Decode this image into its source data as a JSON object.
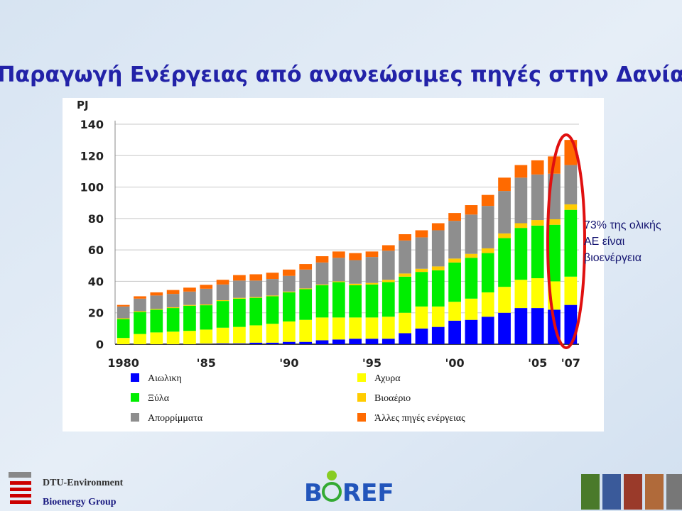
{
  "header": {
    "title": "Παραγωγή Ενέργειας από ανανεώσιμες πηγές στην Δανία"
  },
  "chart_data": {
    "type": "bar",
    "stacked": true,
    "y_label": "PJ",
    "categories": [
      "1980",
      null,
      null,
      null,
      null,
      "'85",
      null,
      null,
      null,
      null,
      "'90",
      null,
      null,
      null,
      null,
      "'95",
      null,
      null,
      null,
      null,
      "'00",
      null,
      null,
      null,
      null,
      "'05",
      null,
      "'07"
    ],
    "ylim": [
      0,
      140
    ],
    "yticks": [
      0,
      20,
      40,
      60,
      80,
      100,
      120,
      140
    ],
    "grid": true,
    "series": [
      {
        "name": "Αιωλικη",
        "color": "#0000ff",
        "values": [
          0,
          0,
          0,
          0,
          0,
          0.3,
          0.5,
          0.5,
          1,
          1,
          1.5,
          1.5,
          2.5,
          3,
          3.5,
          3.5,
          3.5,
          7,
          10,
          11,
          15,
          15.5,
          17.5,
          20,
          23,
          23,
          22,
          25
        ]
      },
      {
        "name": "Αχυρα",
        "color": "#ffff00",
        "values": [
          4,
          6.5,
          7.5,
          8,
          8.5,
          9,
          10,
          10.5,
          11,
          12,
          13,
          14,
          14.5,
          14,
          13.5,
          13.5,
          14,
          13,
          14,
          13,
          12,
          13.5,
          15.5,
          16.5,
          18,
          19,
          18,
          18
        ]
      },
      {
        "name": "Ξύλα",
        "color": "#00ee00",
        "values": [
          12,
          14,
          14.5,
          15,
          16,
          15.5,
          17,
          18,
          17.5,
          17.5,
          18.5,
          19.5,
          20.5,
          22.5,
          20.5,
          21,
          22,
          23,
          22,
          23,
          25,
          26,
          25,
          31,
          33,
          33.5,
          36,
          42.5
        ]
      },
      {
        "name": "Βιοαέριο",
        "color": "#ffcc00",
        "values": [
          0.5,
          0.5,
          0.5,
          0.5,
          0.5,
          0.5,
          0.5,
          0.5,
          0.5,
          0.5,
          0.5,
          0.5,
          0.5,
          0.5,
          1,
          1,
          1.5,
          2,
          2,
          2.5,
          2.5,
          2.5,
          3,
          3,
          3,
          3.5,
          3.5,
          3.5
        ]
      },
      {
        "name": "Απορρίμματα",
        "color": "#8e8e8e",
        "values": [
          7.5,
          8,
          8.5,
          8.5,
          8.5,
          10,
          10,
          11,
          10.5,
          10.5,
          10,
          12,
          14,
          15,
          15,
          16.5,
          18.5,
          21,
          20,
          23,
          24,
          25,
          27,
          27,
          29,
          29,
          29,
          25
        ]
      },
      {
        "name": "Άλλες πηγές ενέργειας",
        "color": "#ff6a00",
        "values": [
          1,
          1.5,
          2,
          2.5,
          2.5,
          2.5,
          3,
          3.5,
          4,
          4,
          4,
          3.5,
          4,
          4,
          4.5,
          3.5,
          3.5,
          4,
          4.5,
          4.5,
          5,
          6,
          7,
          8.5,
          8,
          9,
          11,
          16
        ]
      }
    ],
    "annotation": [
      "73% της ολικής",
      "ΑΕ είναι",
      "βιοενέργεια"
    ]
  },
  "footer": {
    "department": "DTU-Environment",
    "group": "Bioenergy Group",
    "logo": {
      "left": "B",
      "right": "REF"
    }
  }
}
